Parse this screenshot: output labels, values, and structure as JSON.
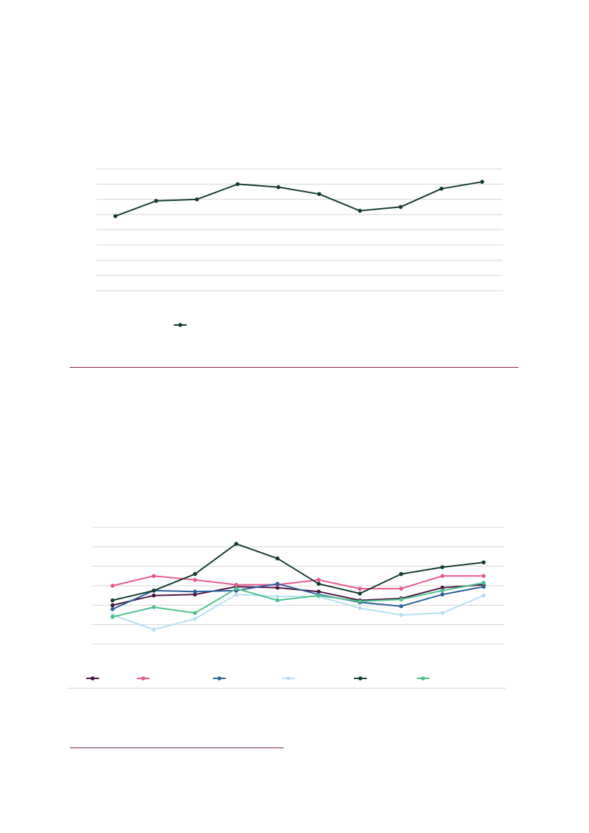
{
  "colors": {
    "divider": "#7a1f45",
    "grid": "#d4d4d4",
    "footer_rule": "#cfcfcf"
  },
  "chart_data": [
    {
      "type": "line",
      "title": "",
      "xlabel": "",
      "ylabel": "",
      "x": [
        1,
        2,
        3,
        4,
        5,
        6,
        7,
        8,
        9,
        10
      ],
      "ylim": [
        0,
        8
      ],
      "grid": true,
      "legend_placement": "bottom-left",
      "series": [
        {
          "color": "#163a2e",
          "values": [
            4.9,
            5.9,
            6.0,
            7.0,
            6.8,
            6.35,
            5.25,
            5.5,
            6.7,
            7.15
          ]
        }
      ]
    },
    {
      "type": "line",
      "title": "",
      "xlabel": "",
      "ylabel": "",
      "x": [
        1,
        2,
        3,
        4,
        5,
        6,
        7,
        8,
        9,
        10
      ],
      "ylim": [
        0,
        6
      ],
      "grid": true,
      "legend_placement": "bottom",
      "series": [
        {
          "color": "#4b1440",
          "values": [
            2.0,
            2.5,
            2.55,
            2.95,
            2.9,
            2.7,
            2.25,
            2.35,
            2.9,
            3.05
          ]
        },
        {
          "color": "#e8578f",
          "values": [
            3.0,
            3.5,
            3.3,
            3.05,
            3.05,
            3.3,
            2.85,
            2.85,
            3.5,
            3.5
          ]
        },
        {
          "color": "#2d5f9a",
          "values": [
            1.8,
            2.75,
            2.7,
            2.75,
            3.1,
            2.55,
            2.15,
            1.95,
            2.55,
            2.95
          ]
        },
        {
          "color": "#b6e0ef",
          "values": [
            1.5,
            0.75,
            1.3,
            2.55,
            2.45,
            2.45,
            1.85,
            1.5,
            1.6,
            2.5
          ]
        },
        {
          "color": "#163a2e",
          "values": [
            2.25,
            2.75,
            3.6,
            5.15,
            4.4,
            3.1,
            2.6,
            3.6,
            3.95,
            4.2
          ]
        },
        {
          "color": "#4fc08d",
          "values": [
            1.4,
            1.9,
            1.6,
            2.85,
            2.25,
            2.5,
            2.2,
            2.3,
            2.75,
            3.15
          ]
        }
      ]
    }
  ]
}
